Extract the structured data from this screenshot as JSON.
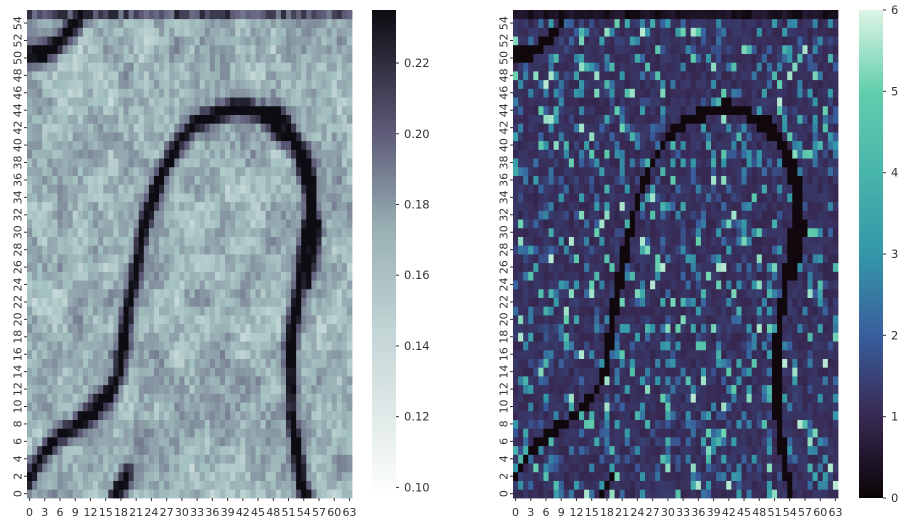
{
  "chart_data": [
    {
      "type": "heatmap",
      "name": "left-heatmap",
      "colormap": "bone_r",
      "colors": [
        "#ffffff",
        "#a4c0c0",
        "#5d5a78",
        "#0c0c12"
      ],
      "x_ticks": [
        0,
        3,
        6,
        9,
        12,
        15,
        18,
        21,
        24,
        27,
        30,
        33,
        36,
        39,
        42,
        45,
        48,
        51,
        54,
        57,
        60,
        63
      ],
      "y_ticks": [
        0,
        2,
        4,
        6,
        8,
        10,
        12,
        14,
        16,
        18,
        20,
        22,
        24,
        26,
        28,
        30,
        32,
        34,
        36,
        38,
        40,
        42,
        44,
        46,
        48,
        50,
        52,
        54
      ],
      "xlim": [
        0,
        64
      ],
      "ylim": [
        0,
        56
      ],
      "vmin": 0.097,
      "vmax": 0.235,
      "colorbar_ticks": [
        "0.10",
        "0.12",
        "0.14",
        "0.16",
        "0.18",
        "0.20",
        "0.22"
      ],
      "colorbar_values": [
        0.1,
        0.12,
        0.14,
        0.16,
        0.18,
        0.2,
        0.22
      ]
    },
    {
      "type": "heatmap",
      "name": "right-heatmap",
      "colormap": "mako",
      "colors": [
        "#0b0405",
        "#382a54",
        "#395d9c",
        "#3497a9",
        "#60ceac",
        "#def5e5"
      ],
      "x_ticks": [
        0,
        3,
        6,
        9,
        12,
        15,
        18,
        21,
        24,
        27,
        30,
        33,
        36,
        39,
        42,
        45,
        48,
        51,
        54,
        57,
        60,
        63
      ],
      "y_ticks": [
        0,
        2,
        4,
        6,
        8,
        10,
        12,
        14,
        16,
        18,
        20,
        22,
        24,
        26,
        28,
        30,
        32,
        34,
        36,
        38,
        40,
        42,
        44,
        46,
        48,
        50,
        52,
        54
      ],
      "xlim": [
        0,
        64
      ],
      "ylim": [
        0,
        56
      ],
      "vmin": 0,
      "vmax": 6,
      "colorbar_ticks": [
        "0",
        "1",
        "2",
        "3",
        "4",
        "5",
        "6"
      ],
      "colorbar_values": [
        0,
        1,
        2,
        3,
        4,
        5,
        6
      ]
    }
  ]
}
